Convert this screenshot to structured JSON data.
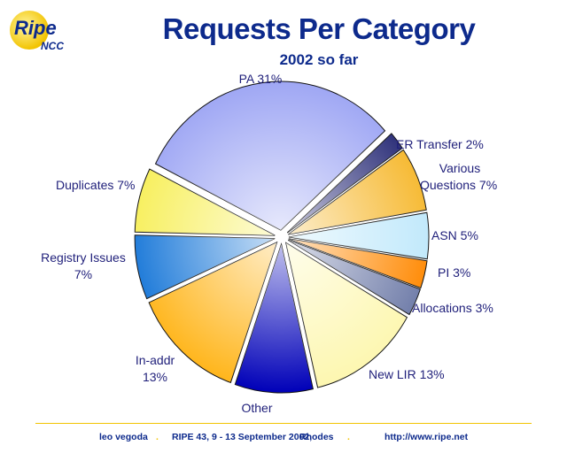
{
  "logo": {
    "text_ripe": "Ripe",
    "text_ncc": "NCC"
  },
  "chart_data": {
    "type": "pie",
    "title": "Requests Per Category",
    "subtitle": "2002 so far",
    "slices": [
      {
        "label": "PA 31%",
        "value": 31,
        "color": "#9fa7f4"
      },
      {
        "label": "ER Transfer 2%",
        "value": 2,
        "color": "#2b2e78"
      },
      {
        "label": "Various Questions 7%",
        "value": 7,
        "color": "#f6b82e"
      },
      {
        "label": "ASN 5%",
        "value": 5,
        "color": "#bfe8fb"
      },
      {
        "label": "PI 3%",
        "value": 3,
        "color": "#ff8800"
      },
      {
        "label": "Allocations 3%",
        "value": 3,
        "color": "#6e7ba8"
      },
      {
        "label": "New LIR 13%",
        "value": 13,
        "color": "#fdf7b0"
      },
      {
        "label": "Other",
        "value": 9,
        "color": "#0000b8"
      },
      {
        "label": "In-addr 13%",
        "value": 13,
        "color": "#ffb51a"
      },
      {
        "label": "Registry Issues 7%",
        "value": 7,
        "color": "#1877d8"
      },
      {
        "label": "Duplicates 7%",
        "value": 7,
        "color": "#f7ef5a"
      }
    ],
    "labels_display": {
      "pa": "PA 31%",
      "er_transfer": "ER Transfer 2%",
      "various_1": "Various",
      "various_2": "Questions 7%",
      "asn": "ASN 5%",
      "pi": "PI 3%",
      "allocations": "Allocations 3%",
      "new_lir": "New LIR 13%",
      "other": "Other",
      "inaddr_1": "In-addr",
      "inaddr_2": "13%",
      "registry_1": "Registry Issues",
      "registry_2": "7%",
      "duplicates": "Duplicates 7%"
    }
  },
  "footer": {
    "author": "leo vegoda",
    "event": "RIPE 43, 9 - 13 September 2002,",
    "location": "Rhodes",
    "url": "http://www.ripe.net",
    "separator": ".",
    "accent": "#f2c300"
  }
}
